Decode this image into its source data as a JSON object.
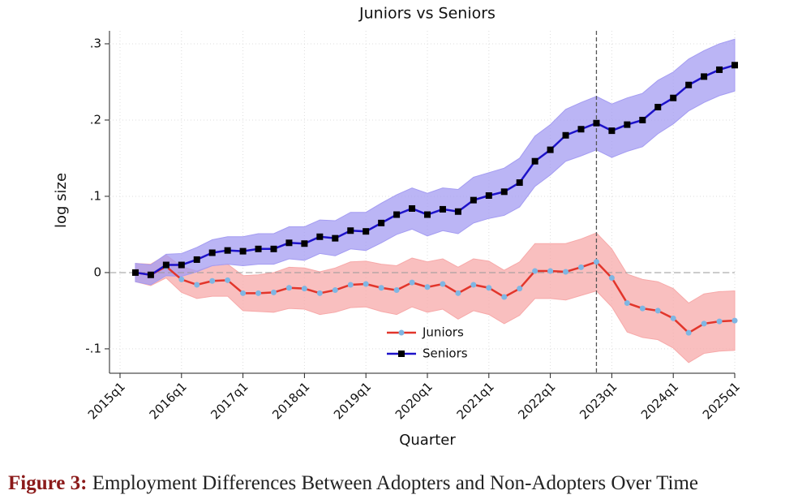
{
  "chart_data": {
    "type": "line",
    "title": "Juniors vs Seniors",
    "x_label": "Quarter",
    "y_label": "log size",
    "categories": [
      "2015q1",
      null,
      null,
      null,
      "2016q1",
      null,
      null,
      null,
      "2017q1",
      null,
      null,
      null,
      "2018q1",
      null,
      null,
      null,
      "2019q1",
      null,
      null,
      null,
      "2020q1",
      null,
      null,
      null,
      "2021q1",
      null,
      null,
      null,
      "2022q1",
      null,
      null,
      null,
      "2023q1",
      null,
      null,
      null,
      "2024q1",
      null,
      null,
      null,
      "2025q1"
    ],
    "series": [
      {
        "name": "Juniors",
        "color": "#e2352b",
        "marker_color": "#7fb6e3",
        "band_color": "#f7a9a9",
        "marker": "circle",
        "values": [
          null,
          0,
          -0.003,
          0.008,
          -0.009,
          -0.016,
          -0.011,
          -0.01,
          -0.027,
          -0.027,
          -0.026,
          -0.02,
          -0.021,
          -0.027,
          -0.023,
          -0.016,
          -0.015,
          -0.02,
          -0.023,
          -0.013,
          -0.019,
          -0.015,
          -0.027,
          -0.016,
          -0.02,
          -0.032,
          -0.021,
          0.002,
          0.002,
          0.001,
          0.007,
          0.014,
          -0.007,
          -0.04,
          -0.047,
          -0.05,
          -0.06,
          -0.079,
          -0.067,
          -0.064,
          -0.063
        ],
        "errors": [
          null,
          0.012,
          0.014,
          0.015,
          0.017,
          0.018,
          0.02,
          0.021,
          0.023,
          0.024,
          0.026,
          0.027,
          0.027,
          0.028,
          0.029,
          0.03,
          0.03,
          0.031,
          0.032,
          0.032,
          0.033,
          0.033,
          0.034,
          0.034,
          0.035,
          0.035,
          0.035,
          0.036,
          0.036,
          0.037,
          0.037,
          0.038,
          0.038,
          0.038,
          0.038,
          0.038,
          0.039,
          0.039,
          0.039,
          0.039,
          0.039
        ]
      },
      {
        "name": "Seniors",
        "color": "#1d12c9",
        "marker_color": "#000000",
        "band_color": "#a49cf2",
        "marker": "square",
        "values": [
          null,
          0,
          -0.003,
          0.01,
          0.01,
          0.017,
          0.026,
          0.029,
          0.028,
          0.031,
          0.031,
          0.039,
          0.038,
          0.047,
          0.045,
          0.055,
          0.054,
          0.065,
          0.076,
          0.084,
          0.076,
          0.083,
          0.08,
          0.095,
          0.101,
          0.106,
          0.118,
          0.146,
          0.161,
          0.18,
          0.188,
          0.196,
          0.186,
          0.194,
          0.2,
          0.217,
          0.229,
          0.246,
          0.257,
          0.266,
          0.272
        ],
        "errors": [
          null,
          0.012,
          0.013,
          0.014,
          0.015,
          0.016,
          0.017,
          0.018,
          0.019,
          0.02,
          0.02,
          0.021,
          0.022,
          0.022,
          0.023,
          0.024,
          0.025,
          0.026,
          0.026,
          0.027,
          0.028,
          0.028,
          0.029,
          0.03,
          0.03,
          0.031,
          0.032,
          0.033,
          0.033,
          0.034,
          0.035,
          0.035,
          0.035,
          0.035,
          0.035,
          0.035,
          0.034,
          0.034,
          0.034,
          0.034,
          0.034
        ]
      }
    ],
    "ylim": [
      -0.132,
      0.317
    ],
    "yticks": [
      {
        "value": -0.1,
        "label": "-.1"
      },
      0,
      {
        "value": 0.1,
        "label": ".1"
      },
      {
        "value": 0.2,
        "label": ".2"
      },
      {
        "value": 0.3,
        "label": ".3"
      }
    ],
    "grid": true,
    "hline": 0,
    "vline_index": 31,
    "legend": "lower center"
  },
  "caption": {
    "label": "Figure 3:",
    "text": "Employment Differences Between Adopters and Non-Adopters Over Time"
  }
}
